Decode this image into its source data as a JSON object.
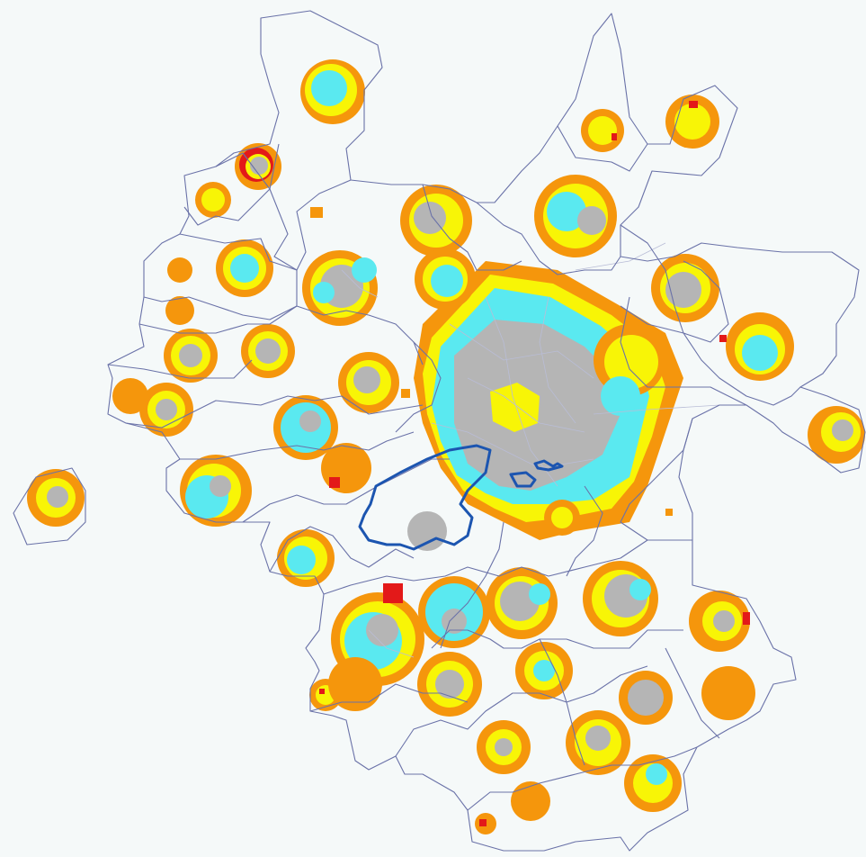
{
  "legend_colors": {
    "fringe": "#f5960c",
    "ring": "#f8f506",
    "alert": "#e31919",
    "core": "#b5b5b5",
    "dense": "#5ae9f0",
    "boundary": "#6a72a8",
    "highlight": "#1c55b0",
    "background": "#f5f9f9"
  },
  "map": {
    "type": "choropleth-raster",
    "boundary_style": "thin-blue-lines",
    "highlighted_zones": 2
  }
}
